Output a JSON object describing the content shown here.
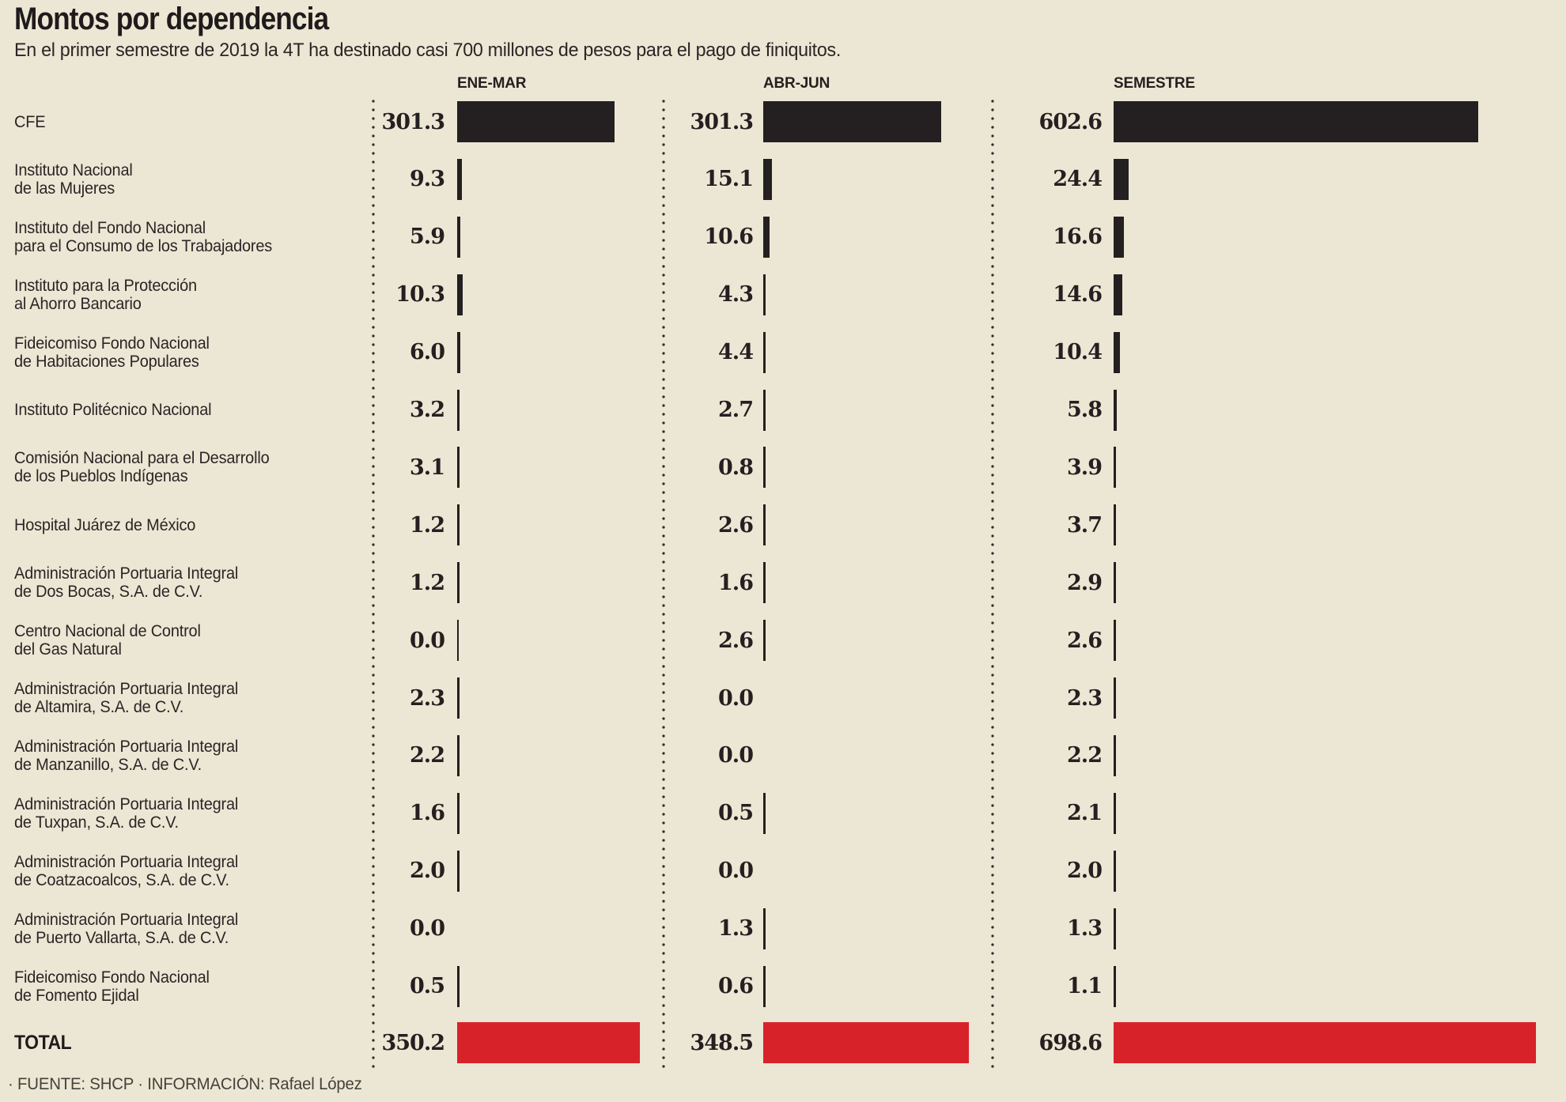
{
  "header": {
    "title": "Montos por dependencia",
    "subtitle": "En el primer semestre de 2019 la 4T ha destinado casi 700 millones de pesos para el pago de finiquitos."
  },
  "columns": [
    {
      "id": "ene",
      "label": "ENE-MAR"
    },
    {
      "id": "abr",
      "label": "ABR-JUN"
    },
    {
      "id": "sem",
      "label": "SEMESTRE"
    }
  ],
  "rows": [
    {
      "label_lines": [
        "CFE"
      ],
      "values": {
        "ene": "301.3",
        "abr": "301.3",
        "sem": "602.6"
      }
    },
    {
      "label_lines": [
        "Instituto Nacional",
        "de las Mujeres"
      ],
      "values": {
        "ene": "9.3",
        "abr": "15.1",
        "sem": "24.4"
      }
    },
    {
      "label_lines": [
        "Instituto del Fondo Nacional",
        "para el Consumo de los Trabajadores"
      ],
      "values": {
        "ene": "5.9",
        "abr": "10.6",
        "sem": "16.6"
      }
    },
    {
      "label_lines": [
        "Instituto para la Protección",
        "al Ahorro Bancario"
      ],
      "values": {
        "ene": "10.3",
        "abr": "4.3",
        "sem": "14.6"
      }
    },
    {
      "label_lines": [
        "Fideicomiso Fondo Nacional",
        "de Habitaciones Populares"
      ],
      "values": {
        "ene": "6.0",
        "abr": "4.4",
        "sem": "10.4"
      }
    },
    {
      "label_lines": [
        "Instituto Politécnico Nacional"
      ],
      "values": {
        "ene": "3.2",
        "abr": "2.7",
        "sem": "5.8"
      }
    },
    {
      "label_lines": [
        "Comisión Nacional para el Desarrollo",
        "de los Pueblos Indígenas"
      ],
      "values": {
        "ene": "3.1",
        "abr": "0.8",
        "sem": "3.9"
      }
    },
    {
      "label_lines": [
        "Hospital Juárez de México"
      ],
      "values": {
        "ene": "1.2",
        "abr": "2.6",
        "sem": "3.7"
      }
    },
    {
      "label_lines": [
        "Administración Portuaria Integral",
        "de Dos Bocas, S.A. de C.V."
      ],
      "values": {
        "ene": "1.2",
        "abr": "1.6",
        "sem": "2.9"
      }
    },
    {
      "label_lines": [
        "Centro Nacional de Control",
        "del Gas Natural"
      ],
      "values": {
        "ene": "0.0",
        "abr": "2.6",
        "sem": "2.6"
      }
    },
    {
      "label_lines": [
        "Administración Portuaria Integral",
        "de Altamira, S.A. de C.V."
      ],
      "values": {
        "ene": "2.3",
        "abr": "0.0",
        "sem": "2.3"
      }
    },
    {
      "label_lines": [
        "Administración Portuaria Integral",
        "de Manzanillo, S.A. de C.V."
      ],
      "values": {
        "ene": "2.2",
        "abr": "0.0",
        "sem": "2.2"
      }
    },
    {
      "label_lines": [
        "Administración Portuaria Integral",
        "de Tuxpan, S.A. de C.V."
      ],
      "values": {
        "ene": "1.6",
        "abr": "0.5",
        "sem": "2.1"
      }
    },
    {
      "label_lines": [
        "Administración Portuaria Integral",
        "de Coatzacoalcos, S.A. de C.V."
      ],
      "values": {
        "ene": "2.0",
        "abr": "0.0",
        "sem": "2.0"
      }
    },
    {
      "label_lines": [
        "Administración Portuaria Integral",
        "de Puerto Vallarta, S.A. de C.V."
      ],
      "values": {
        "ene": "0.0",
        "abr": "1.3",
        "sem": "1.3"
      }
    },
    {
      "label_lines": [
        "Fideicomiso Fondo Nacional",
        "de Fomento Ejidal"
      ],
      "values": {
        "ene": "0.5",
        "abr": "0.6",
        "sem": "1.1"
      }
    }
  ],
  "zero_ticks": [
    {
      "row": 9,
      "col": "ene"
    }
  ],
  "total": {
    "label": "TOTAL",
    "values": {
      "ene": "350.2",
      "abr": "348.5",
      "sem": "698.6"
    }
  },
  "footer": {
    "text": "· FUENTE: SHCP · INFORMACIÓN: Rafael López"
  },
  "colors": {
    "background": "#ece7d4",
    "bar": "#241f20",
    "total_bar": "#d8222a",
    "text": "#2a2526"
  },
  "chart_data": {
    "type": "bar",
    "orientation": "horizontal",
    "title": "Montos por dependencia",
    "subtitle": "En el primer semestre de 2019 la 4T ha destinado casi 700 millones de pesos para el pago de finiquitos.",
    "unit": "millones de pesos",
    "categories": [
      "CFE",
      "Instituto Nacional de las Mujeres",
      "Instituto del Fondo Nacional para el Consumo de los Trabajadores",
      "Instituto para la Protección al Ahorro Bancario",
      "Fideicomiso Fondo Nacional de Habitaciones Populares",
      "Instituto Politécnico Nacional",
      "Comisión Nacional para el Desarrollo de los Pueblos Indígenas",
      "Hospital Juárez de México",
      "Administración Portuaria Integral de Dos Bocas, S.A. de C.V.",
      "Centro Nacional de Control del Gas Natural",
      "Administración Portuaria Integral de Altamira, S.A. de C.V.",
      "Administración Portuaria Integral de Manzanillo, S.A. de C.V.",
      "Administración Portuaria Integral de Tuxpan, S.A. de C.V.",
      "Administración Portuaria Integral de Coatzacoalcos, S.A. de C.V.",
      "Administración Portuaria Integral de Puerto Vallarta, S.A. de C.V.",
      "Fideicomiso Fondo Nacional de Fomento Ejidal"
    ],
    "series": [
      {
        "name": "ENE-MAR",
        "values": [
          301.3,
          9.3,
          5.9,
          10.3,
          6.0,
          3.2,
          3.1,
          1.2,
          1.2,
          0.0,
          2.3,
          2.2,
          1.6,
          2.0,
          0.0,
          0.5
        ],
        "total": 350.2
      },
      {
        "name": "ABR-JUN",
        "values": [
          301.3,
          15.1,
          10.6,
          4.3,
          4.4,
          2.7,
          0.8,
          2.6,
          1.6,
          2.6,
          0.0,
          0.0,
          0.5,
          0.0,
          1.3,
          0.6
        ],
        "total": 348.5
      },
      {
        "name": "SEMESTRE",
        "values": [
          602.6,
          24.4,
          16.6,
          14.6,
          10.4,
          5.8,
          3.9,
          3.7,
          2.9,
          2.6,
          2.3,
          2.2,
          2.1,
          2.0,
          1.3,
          1.1
        ],
        "total": 698.6
      }
    ],
    "legend_position": "column headers",
    "grid": false,
    "source": "SHCP",
    "credit": "Rafael López"
  }
}
